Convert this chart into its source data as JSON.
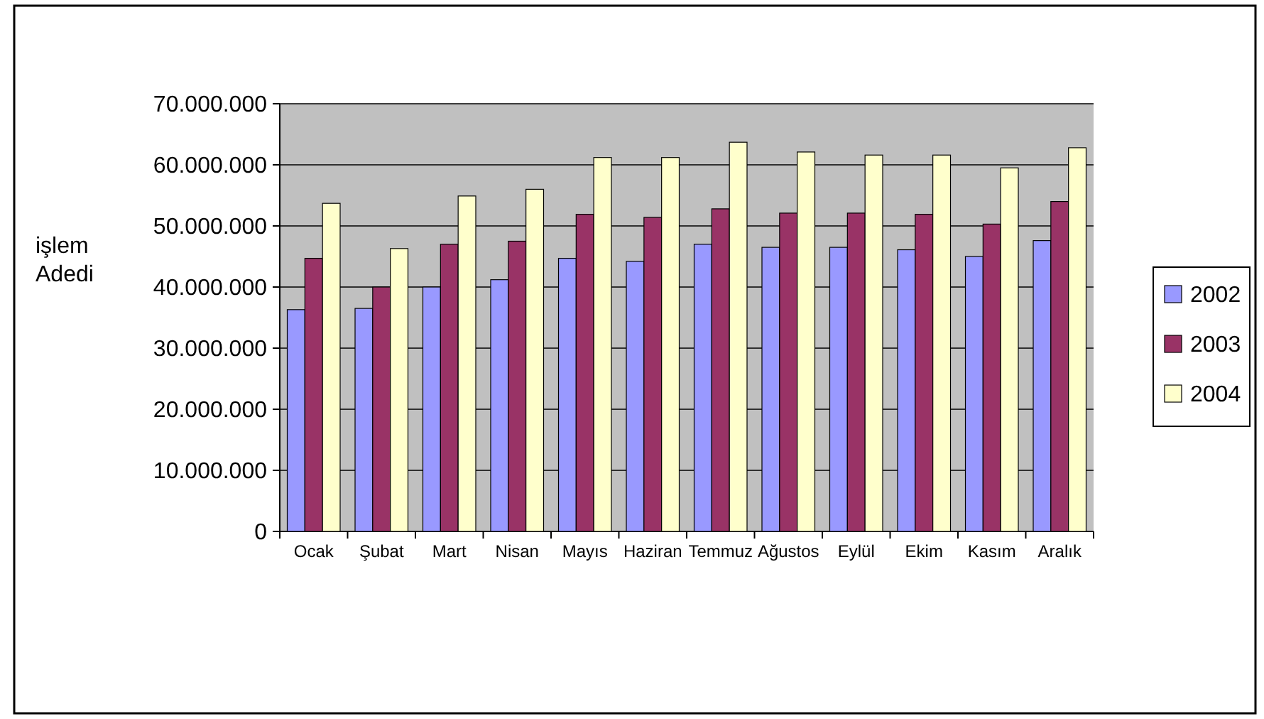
{
  "chart_data": {
    "type": "bar",
    "ylabel": "işlem Adedi",
    "categories": [
      "Ocak",
      "Şubat",
      "Mart",
      "Nisan",
      "Mayıs",
      "Haziran",
      "Temmuz",
      "Ağustos",
      "Eylül",
      "Ekim",
      "Kasım",
      "Aralık"
    ],
    "series": [
      {
        "name": "2002",
        "color": "#9999ff",
        "values": [
          36300000,
          36500000,
          40000000,
          41200000,
          44700000,
          44200000,
          47000000,
          46500000,
          46500000,
          46100000,
          45000000,
          47600000
        ]
      },
      {
        "name": "2003",
        "color": "#993366",
        "values": [
          44700000,
          40000000,
          47000000,
          47500000,
          51900000,
          51400000,
          52800000,
          52100000,
          52100000,
          51900000,
          50300000,
          54000000
        ]
      },
      {
        "name": "2004",
        "color": "#ffffcc",
        "values": [
          53700000,
          46300000,
          54900000,
          56000000,
          61200000,
          61200000,
          63700000,
          62100000,
          61600000,
          61600000,
          59500000,
          62800000
        ]
      }
    ],
    "ylim": [
      0,
      70000000
    ],
    "yticks": [
      {
        "value": 0,
        "label": "0"
      },
      {
        "value": 10000000,
        "label": "10.000.000"
      },
      {
        "value": 20000000,
        "label": "20.000.000"
      },
      {
        "value": 30000000,
        "label": "30.000.000"
      },
      {
        "value": 40000000,
        "label": "40.000.000"
      },
      {
        "value": 50000000,
        "label": "50.000.000"
      },
      {
        "value": 60000000,
        "label": "60.000.000"
      },
      {
        "value": 70000000,
        "label": "70.000.000"
      }
    ],
    "grid": "y",
    "legend": "right"
  }
}
